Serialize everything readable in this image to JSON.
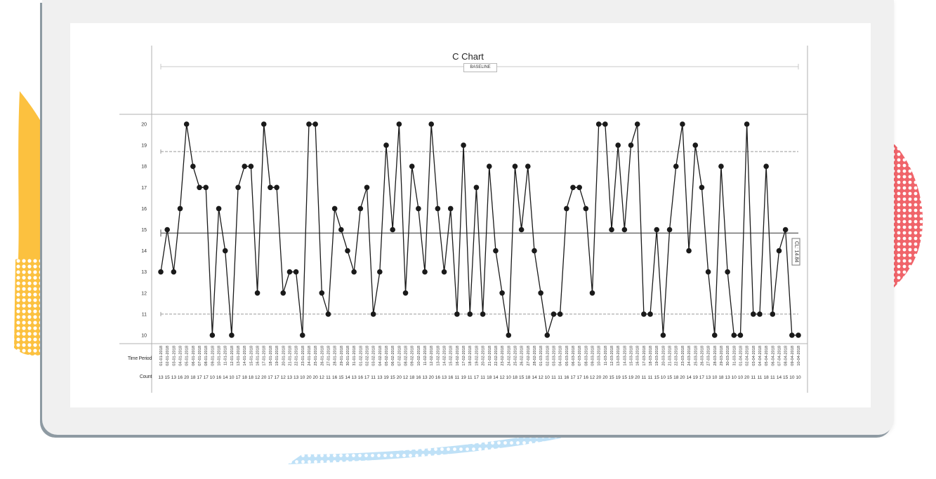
{
  "chart_data": {
    "type": "line",
    "title": "C Chart",
    "phase_label": "BASELINE",
    "control_line_label": "CL: 14.84",
    "center_line": 14.84,
    "ucl": 18.7,
    "lcl": 11.0,
    "ylim": [
      9.6,
      20.45
    ],
    "yticks": [
      10,
      11,
      12,
      13,
      14,
      15,
      16,
      17,
      18,
      19,
      20
    ],
    "grid": false,
    "row_labels": {
      "time_period": "Time Period",
      "count": "Count"
    },
    "x": [
      "01-01-2018",
      "02-01-2018",
      "03-01-2018",
      "04-01-2018",
      "05-01-2018",
      "06-01-2018",
      "07-01-2018",
      "08-01-2018",
      "09-01-2018",
      "10-01-2018",
      "11-01-2018",
      "12-01-2018",
      "13-01-2018",
      "14-01-2018",
      "15-01-2018",
      "16-01-2018",
      "17-01-2018",
      "18-01-2018",
      "19-01-2018",
      "20-01-2018",
      "21-01-2018",
      "22-01-2018",
      "23-01-2018",
      "24-01-2018",
      "25-01-2018",
      "26-01-2018",
      "27-01-2018",
      "28-01-2018",
      "29-01-2018",
      "30-01-2018",
      "31-01-2018",
      "01-02-2018",
      "02-02-2018",
      "03-02-2018",
      "04-02-2018",
      "05-02-2018",
      "06-02-2018",
      "07-02-2018",
      "08-02-2018",
      "09-02-2018",
      "10-02-2018",
      "11-02-2018",
      "12-02-2018",
      "13-02-2018",
      "14-02-2018",
      "15-02-2018",
      "16-02-2018",
      "17-02-2018",
      "18-02-2018",
      "19-02-2018",
      "20-02-2018",
      "21-02-2018",
      "22-02-2018",
      "23-02-2018",
      "24-02-2018",
      "25-02-2018",
      "26-02-2018",
      "27-02-2018",
      "28-02-2018",
      "01-03-2018",
      "02-03-2018",
      "03-03-2018",
      "04-03-2018",
      "05-03-2018",
      "06-03-2018",
      "07-03-2018",
      "08-03-2018",
      "09-03-2018",
      "10-03-2018",
      "11-03-2018",
      "12-03-2018",
      "13-03-2018",
      "14-03-2018",
      "15-03-2018",
      "16-03-2018",
      "17-03-2018",
      "18-03-2018",
      "19-03-2018",
      "20-03-2018",
      "21-03-2018",
      "22-03-2018",
      "23-03-2018",
      "24-03-2018",
      "25-03-2018",
      "26-03-2018",
      "27-03-2018",
      "28-03-2018",
      "29-03-2018",
      "30-03-2018",
      "31-03-2018",
      "01-04-2018",
      "02-04-2018",
      "03-04-2018",
      "04-04-2018",
      "05-04-2018",
      "06-04-2018",
      "07-04-2018",
      "08-04-2018",
      "09-04-2018",
      "10-04-2018"
    ],
    "values": [
      13,
      15,
      13,
      16,
      20,
      18,
      17,
      17,
      10,
      16,
      14,
      10,
      17,
      18,
      18,
      12,
      20,
      17,
      17,
      12,
      13,
      13,
      10,
      20,
      20,
      12,
      11,
      16,
      15,
      14,
      13,
      16,
      17,
      11,
      13,
      19,
      15,
      20,
      12,
      18,
      16,
      13,
      20,
      16,
      13,
      16,
      11,
      19,
      11,
      17,
      11,
      18,
      14,
      12,
      10,
      18,
      15,
      18,
      14,
      12,
      10,
      11,
      11,
      16,
      17,
      17,
      16,
      12,
      20,
      20,
      15,
      19,
      15,
      19,
      20,
      11,
      11,
      15,
      10,
      15,
      18,
      20,
      14,
      19,
      17,
      13,
      10,
      18,
      13,
      10,
      10,
      20,
      11,
      11,
      18,
      11,
      14,
      15,
      10,
      10
    ]
  },
  "colors": {
    "line": "#1a1a1a",
    "marker": "#1a1a1a",
    "center_line": "#707070",
    "limit_line": "#9a9a9a",
    "axis": "#b0b0b0",
    "frame": "#f0f0f0",
    "frame_shadow": "#8e9aa2",
    "deco_yellow": "#fcc13f",
    "deco_red": "#f0646a",
    "deco_blue": "#bfe1f7"
  }
}
